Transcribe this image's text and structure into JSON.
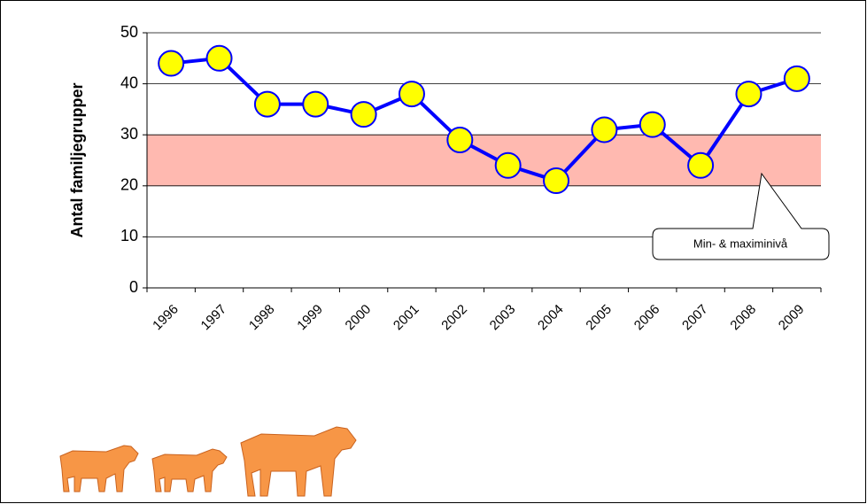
{
  "chart_data": {
    "type": "line",
    "y_axis_label": "Antal familjegrupper",
    "categories": [
      "1996",
      "1997",
      "1998",
      "1999",
      "2000",
      "2001",
      "2002",
      "2003",
      "2004",
      "2005",
      "2006",
      "2007",
      "2008",
      "2009"
    ],
    "series": [
      {
        "name": "Antal familjegrupper",
        "color": "#0000ff",
        "marker_color": "#ffff00",
        "values": [
          44,
          45,
          36,
          36,
          34,
          38,
          29,
          24,
          21,
          31,
          32,
          24,
          38,
          41
        ]
      }
    ],
    "band": [
      20,
      30
    ],
    "band_color": "#ffb9b0",
    "annotation": "Min- & maximinivå",
    "ylim": [
      0,
      50
    ],
    "yticks": [
      0,
      10,
      20,
      30,
      40,
      50
    ],
    "grid": true
  }
}
